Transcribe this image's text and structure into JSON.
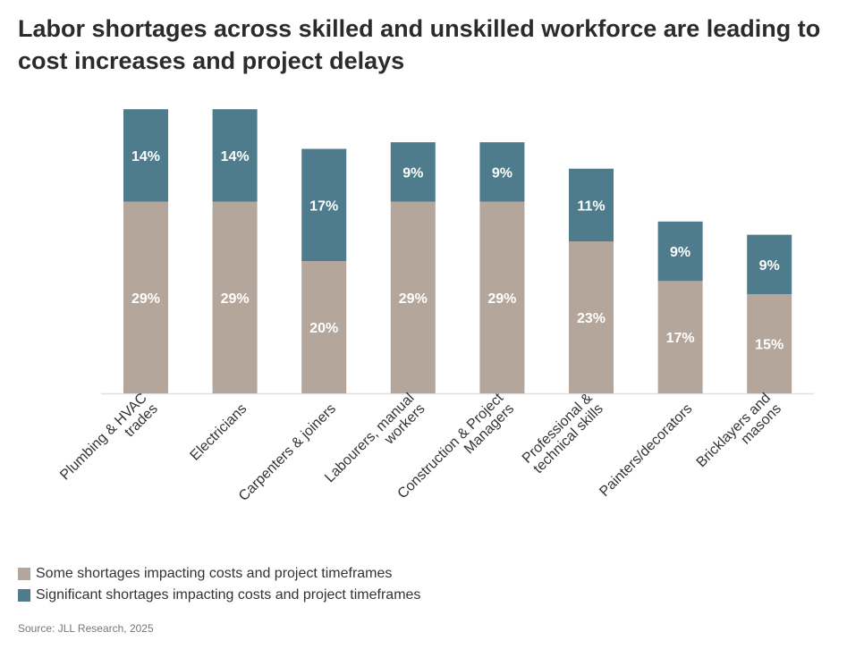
{
  "chart_data": {
    "type": "bar",
    "stacked": true,
    "title": "Labor shortages across skilled and unskilled workforce are leading to cost increases and project delays",
    "categories": [
      [
        "Plumbing & HVAC",
        "trades"
      ],
      [
        "Electricians"
      ],
      [
        "Carpenters & joiners"
      ],
      [
        "Labourers, manual",
        "workers"
      ],
      [
        "Construction & Project",
        "Managers"
      ],
      [
        "Professional &",
        "technical skills"
      ],
      [
        "Painters/decorators"
      ],
      [
        "Bricklayers and",
        "masons"
      ]
    ],
    "series": [
      {
        "name": "Some shortages impacting costs and project timeframes",
        "color": "#b5a69b",
        "values": [
          29,
          29,
          20,
          29,
          29,
          23,
          17,
          15
        ]
      },
      {
        "name": "Significant shortages impacting costs and project timeframes",
        "color": "#4e7c8c",
        "values": [
          14,
          14,
          17,
          9,
          9,
          11,
          9,
          9
        ]
      }
    ],
    "value_suffix": "%",
    "ylim": [
      0,
      46
    ],
    "grid": false,
    "legend_position": "bottom-left",
    "source": "Source: JLL Research, 2025"
  }
}
